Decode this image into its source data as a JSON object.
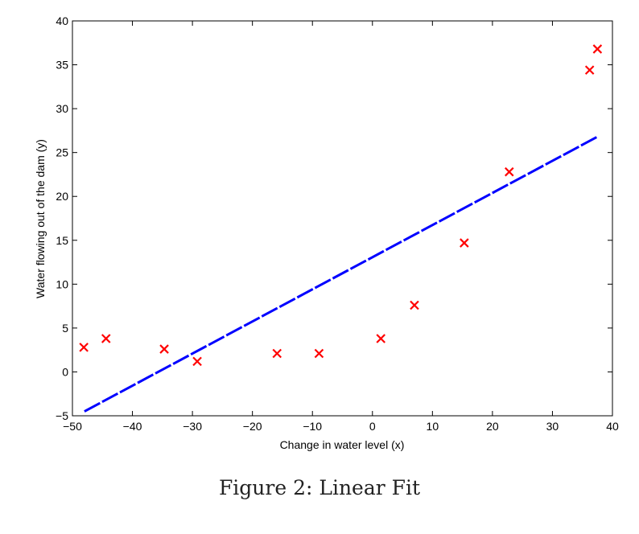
{
  "caption": "Figure 2: Linear Fit",
  "chart_data": {
    "type": "scatter",
    "title": "",
    "xlabel": "Change in water level (x)",
    "ylabel": "Water flowing out of the dam (y)",
    "xlim": [
      -50,
      40
    ],
    "ylim": [
      -5,
      40
    ],
    "xticks": [
      -50,
      -40,
      -30,
      -20,
      -10,
      0,
      10,
      20,
      30,
      40
    ],
    "yticks": [
      -5,
      0,
      5,
      10,
      15,
      20,
      25,
      30,
      35,
      40
    ],
    "xtick_labels": [
      "−50",
      "−40",
      "−30",
      "−20",
      "−10",
      "0",
      "10",
      "20",
      "30",
      "40"
    ],
    "ytick_labels": [
      "−5",
      "0",
      "5",
      "10",
      "15",
      "20",
      "25",
      "30",
      "35",
      "40"
    ],
    "grid": false,
    "series": [
      {
        "type": "scatter",
        "marker": "x",
        "color": "#ff0000",
        "x": [
          -48.1,
          -44.4,
          -34.7,
          -29.2,
          -15.9,
          -8.9,
          1.4,
          7.0,
          15.3,
          22.8,
          36.2,
          37.5
        ],
        "y": [
          2.8,
          3.8,
          2.6,
          1.2,
          2.1,
          2.1,
          3.8,
          7.6,
          14.7,
          22.8,
          34.4,
          36.8
        ]
      },
      {
        "type": "line",
        "style": "dashed",
        "color": "#0000ff",
        "x": [
          -48.0,
          37.5
        ],
        "y": [
          -4.5,
          26.8
        ]
      }
    ]
  }
}
